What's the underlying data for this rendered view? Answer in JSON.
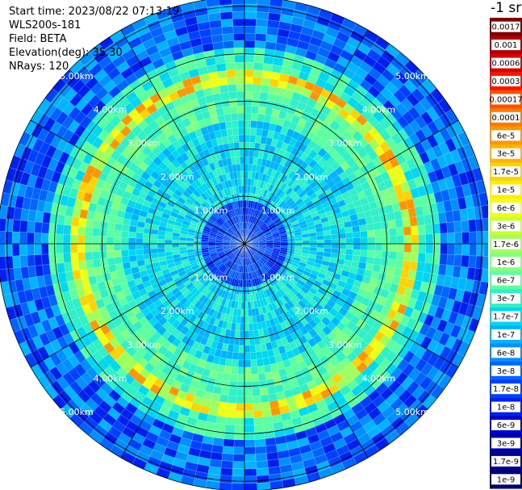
{
  "header": {
    "start_time": "Start time: 2023/08/22 07:13:19",
    "instrument": "WLS200s-181",
    "field": "Field: BETA",
    "elevation": "Elevation(deg): 35.30",
    "nrays": "NRays: 120"
  },
  "colorbar": {
    "unit": "-1 sr",
    "labels": [
      "0.0017",
      "0.001",
      "0.0006",
      "0.0003",
      "0.00017",
      "0.0001",
      "6e-5",
      "3e-5",
      "1.7e-5",
      "1e-5",
      "6e-6",
      "3e-6",
      "1.7e-6",
      "1e-6",
      "6e-7",
      "3e-7",
      "1.7e-7",
      "1e-7",
      "6e-8",
      "3e-8",
      "1.7e-8",
      "1e-8",
      "6e-9",
      "3e-9",
      "1.7e-9",
      "1e-9"
    ],
    "colors": [
      "#800000",
      "#b00000",
      "#d80000",
      "#ff1400",
      "#ff5000",
      "#ff7800",
      "#ff9600",
      "#ffb400",
      "#ffd200",
      "#ffee00",
      "#f0ff10",
      "#c8ff30",
      "#a0ff58",
      "#80ff80",
      "#5affa0",
      "#30f0c8",
      "#00d8f0",
      "#00b4ff",
      "#0090ff",
      "#0064ff",
      "#0040ff",
      "#0020f0",
      "#0000d0",
      "#0000b0",
      "#000090",
      "#000070"
    ]
  },
  "rings": [
    {
      "label": "1.00km",
      "km": 1
    },
    {
      "label": "2.00km",
      "km": 2
    },
    {
      "label": "3.00km",
      "km": 3
    },
    {
      "label": "4.00km",
      "km": 4
    },
    {
      "label": "5.00km",
      "km": 5
    }
  ],
  "radar": {
    "max_range_km": 5.2,
    "nrays": 120,
    "spokes": 12
  }
}
